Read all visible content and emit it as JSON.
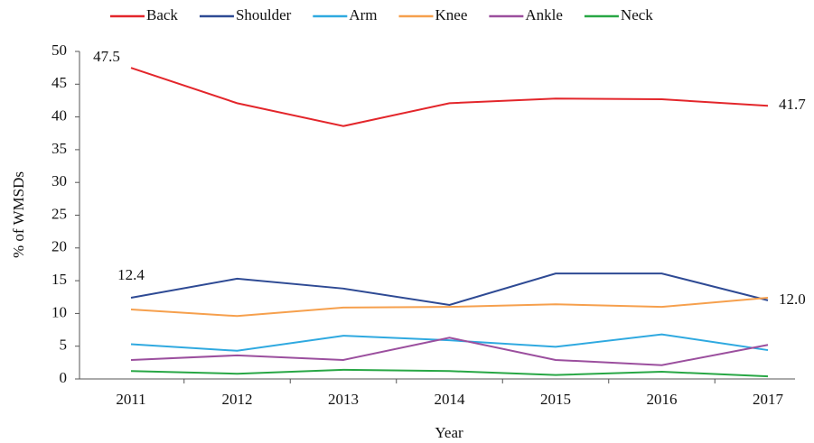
{
  "chart_data": {
    "type": "line",
    "x_label": "Year",
    "y_label": "% of WMSDs",
    "categories": [
      "2011",
      "2012",
      "2013",
      "2014",
      "2015",
      "2016",
      "2017"
    ],
    "series": [
      {
        "name": "Back",
        "color": "#e3262b",
        "values": [
          47.5,
          42.1,
          38.6,
          42.1,
          42.8,
          42.7,
          41.7
        ],
        "value_labels": [
          "47.5",
          null,
          null,
          null,
          null,
          null,
          "41.7"
        ]
      },
      {
        "name": "Shoulder",
        "color": "#2e4a94",
        "values": [
          12.4,
          15.3,
          13.8,
          11.3,
          16.1,
          16.1,
          12.0
        ],
        "value_labels": [
          "12.4",
          null,
          null,
          null,
          null,
          null,
          "12.0"
        ]
      },
      {
        "name": "Arm",
        "color": "#2fa9e0",
        "values": [
          5.3,
          4.3,
          6.6,
          5.9,
          4.9,
          6.8,
          4.4
        ]
      },
      {
        "name": "Knee",
        "color": "#f6a04d",
        "values": [
          10.6,
          9.6,
          10.9,
          11.0,
          11.4,
          11.0,
          12.4
        ]
      },
      {
        "name": "Ankle",
        "color": "#9b4f9e",
        "values": [
          2.9,
          3.6,
          2.9,
          6.3,
          2.9,
          2.1,
          5.2
        ]
      },
      {
        "name": "Neck",
        "color": "#28a745",
        "values": [
          1.2,
          0.8,
          1.4,
          1.2,
          0.6,
          1.1,
          0.4
        ]
      }
    ],
    "ylim": [
      0,
      50
    ],
    "yticks": [
      0,
      5,
      10,
      15,
      20,
      25,
      30,
      35,
      40,
      45,
      50
    ],
    "legend": "top",
    "grid": false
  }
}
